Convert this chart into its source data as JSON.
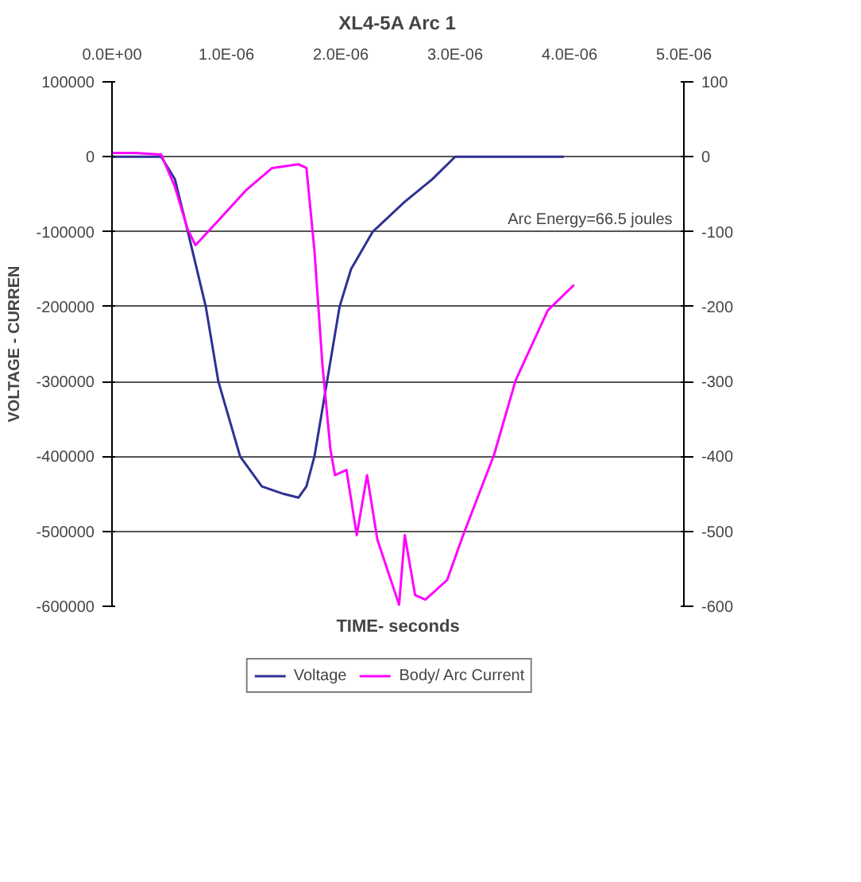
{
  "chart_data": {
    "type": "line",
    "title": "XL4-5A Arc 1",
    "xlabel": "TIME- seconds",
    "ylabel": "VOLTAGE - CURREN",
    "xlim": [
      0,
      5e-06
    ],
    "xticks": [
      {
        "value": 0,
        "label": "0.0E+00"
      },
      {
        "value": 1e-06,
        "label": "1.0E-06"
      },
      {
        "value": 2e-06,
        "label": "2.0E-06"
      },
      {
        "value": 3e-06,
        "label": "3.0E-06"
      },
      {
        "value": 4e-06,
        "label": "4.0E-06"
      },
      {
        "value": 5e-06,
        "label": "5.0E-06"
      }
    ],
    "ylim": [
      -600000,
      100000
    ],
    "yticks": [
      -600000,
      -500000,
      -400000,
      -300000,
      -200000,
      -100000,
      0,
      100000
    ],
    "y2lim": [
      -600,
      100
    ],
    "y2ticks": [
      -600,
      -500,
      -400,
      -300,
      -200,
      -100,
      0,
      100
    ],
    "grid": "y",
    "legend": "bottom",
    "marker": "none",
    "line_style": "solid",
    "annotations": [
      "Arc Energy=66.5 joules"
    ],
    "series": [
      {
        "name": "Voltage",
        "color": "#2e3192",
        "x": [
          0,
          2e-07,
          4.3e-07,
          5.5e-07,
          6.6e-07,
          8.2e-07,
          9.3e-07,
          1.12e-06,
          1.31e-06,
          1.5e-06,
          1.63e-06,
          1.7e-06,
          1.77e-06,
          1.88e-06,
          1.99e-06,
          2.09e-06,
          2.28e-06,
          2.56e-06,
          2.8e-06,
          3e-06,
          3.5e-06,
          3.95e-06
        ],
        "values": [
          0,
          0,
          0,
          -30000,
          -98000,
          -200000,
          -300000,
          -400000,
          -440000,
          -450000,
          -455000,
          -440000,
          -400000,
          -300000,
          -200000,
          -150000,
          -100000,
          -60000,
          -30000,
          0,
          0,
          0
        ]
      },
      {
        "name": "Body/ Arc Current",
        "axis": "y2",
        "color": "#ff00ff",
        "x": [
          0,
          2e-07,
          4.3e-07,
          5.5e-07,
          6.6e-07,
          7.3e-07,
          9.3e-07,
          1.17e-06,
          1.4e-06,
          1.63e-06,
          1.7e-06,
          1.77e-06,
          1.84e-06,
          1.91e-06,
          1.95e-06,
          2.05e-06,
          2.14e-06,
          2.23e-06,
          2.32e-06,
          2.51e-06,
          2.56e-06,
          2.65e-06,
          2.74e-06,
          2.93e-06,
          3.07e-06,
          3.34e-06,
          3.53e-06,
          3.81e-06,
          4.04e-06
        ],
        "values": [
          5,
          5,
          3,
          -40,
          -96,
          -118,
          -85,
          -45,
          -15,
          -10,
          -15,
          -125,
          -278,
          -391,
          -425,
          -418,
          -505,
          -425,
          -511,
          -598,
          -505,
          -585,
          -591,
          -565,
          -505,
          -398,
          -298,
          -205,
          -171
        ]
      }
    ]
  }
}
